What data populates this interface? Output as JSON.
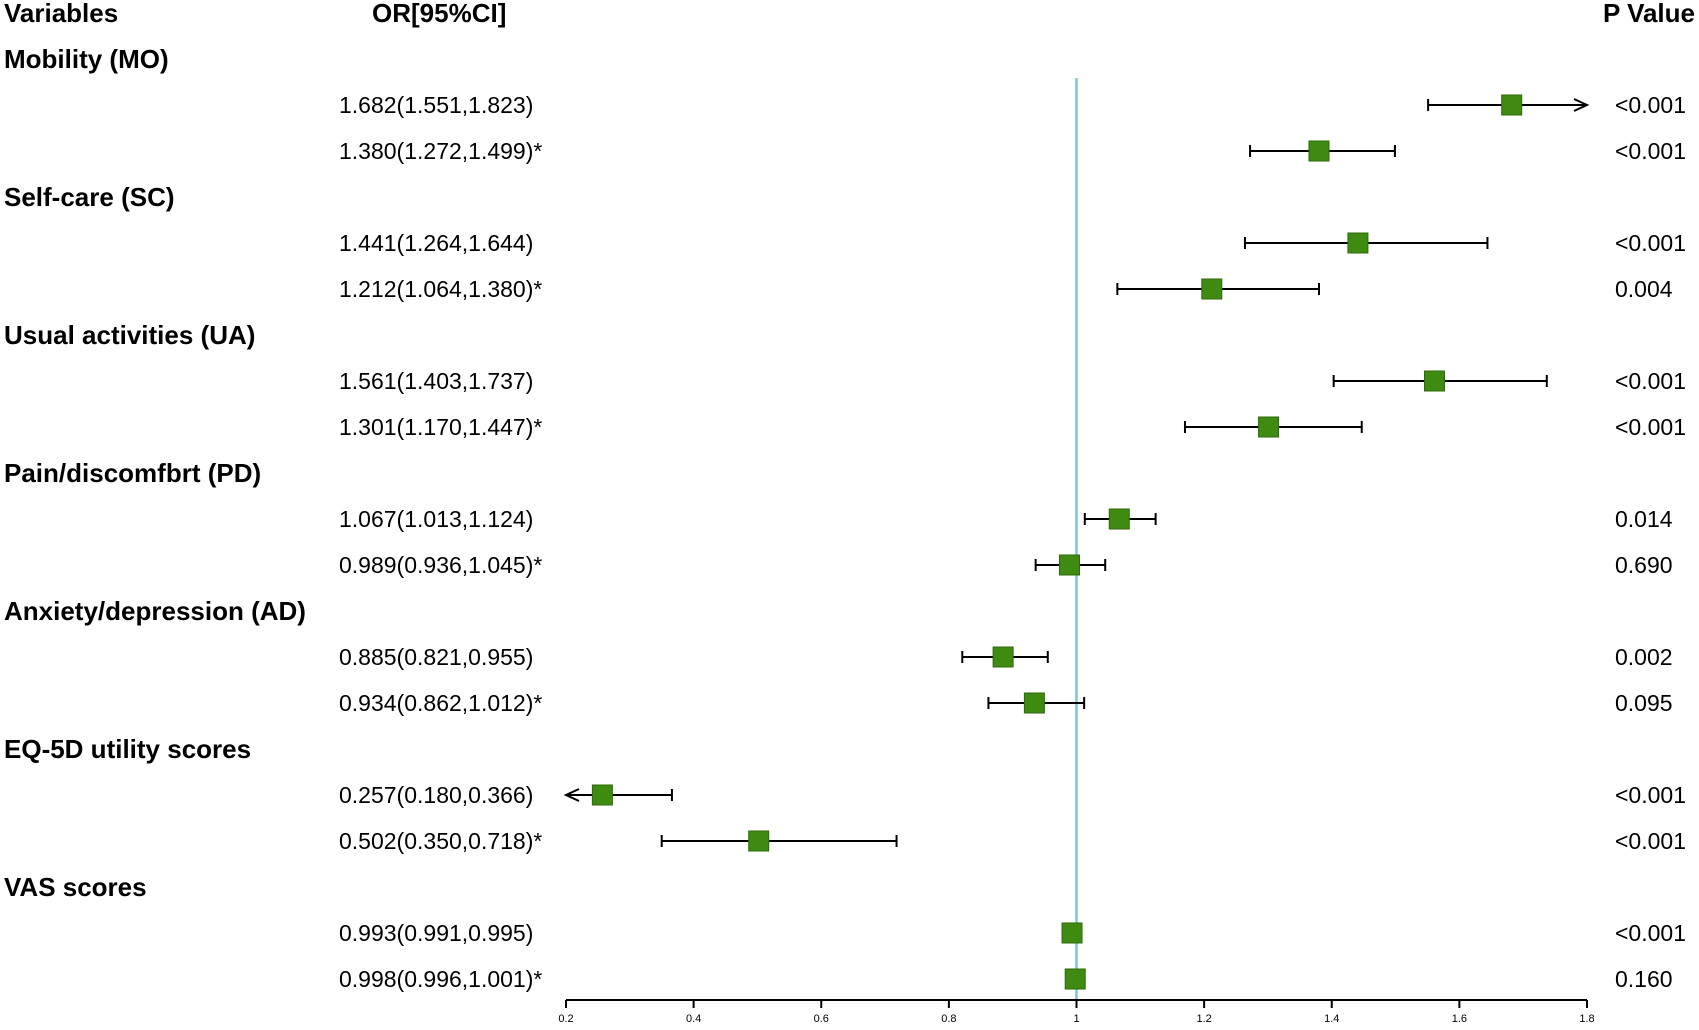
{
  "headers": {
    "variables": "Variables",
    "or": "OR[95%CI]",
    "p": "P Value"
  },
  "colors": {
    "marker": "#3f8a10",
    "marker_edge": "#2c6a0a",
    "refline": "#7cc6d0",
    "ci": "#000000"
  },
  "chart_data": {
    "type": "forest",
    "xlim": [
      0.2,
      1.8
    ],
    "ticks": [
      "0.2",
      "0.4",
      "0.6",
      "0.8",
      "1",
      "1.2",
      "1.4",
      "1.6",
      "1.8"
    ],
    "reference": 1,
    "groups": [
      {
        "label": "Mobility (MO)",
        "rows": [
          {
            "text": "1.682(1.551,1.823)",
            "or": 1.682,
            "lo": 1.551,
            "hi": 1.823,
            "p": "<0.001"
          },
          {
            "text": "1.380(1.272,1.499)*",
            "or": 1.38,
            "lo": 1.272,
            "hi": 1.499,
            "p": "<0.001"
          }
        ]
      },
      {
        "label": "Self-care (SC)",
        "rows": [
          {
            "text": "1.441(1.264,1.644)",
            "or": 1.441,
            "lo": 1.264,
            "hi": 1.644,
            "p": "<0.001"
          },
          {
            "text": "1.212(1.064,1.380)*",
            "or": 1.212,
            "lo": 1.064,
            "hi": 1.38,
            "p": "0.004"
          }
        ]
      },
      {
        "label": "Usual activities (UA)",
        "rows": [
          {
            "text": "1.561(1.403,1.737)",
            "or": 1.561,
            "lo": 1.403,
            "hi": 1.737,
            "p": "<0.001"
          },
          {
            "text": "1.301(1.170,1.447)*",
            "or": 1.301,
            "lo": 1.17,
            "hi": 1.447,
            "p": "<0.001"
          }
        ]
      },
      {
        "label": "Pain/discomfbrt (PD)",
        "rows": [
          {
            "text": "1.067(1.013,1.124)",
            "or": 1.067,
            "lo": 1.013,
            "hi": 1.124,
            "p": "0.014"
          },
          {
            "text": "0.989(0.936,1.045)*",
            "or": 0.989,
            "lo": 0.936,
            "hi": 1.045,
            "p": "0.690"
          }
        ]
      },
      {
        "label": "Anxiety/depression (AD)",
        "rows": [
          {
            "text": "0.885(0.821,0.955)",
            "or": 0.885,
            "lo": 0.821,
            "hi": 0.955,
            "p": "0.002"
          },
          {
            "text": "0.934(0.862,1.012)*",
            "or": 0.934,
            "lo": 0.862,
            "hi": 1.012,
            "p": "0.095"
          }
        ]
      },
      {
        "label": "EQ-5D utility scores",
        "rows": [
          {
            "text": "0.257(0.180,0.366)",
            "or": 0.257,
            "lo": 0.18,
            "hi": 0.366,
            "p": "<0.001"
          },
          {
            "text": "0.502(0.350,0.718)*",
            "or": 0.502,
            "lo": 0.35,
            "hi": 0.718,
            "p": "<0.001"
          }
        ]
      },
      {
        "label": "VAS scores",
        "rows": [
          {
            "text": "0.993(0.991,0.995)",
            "or": 0.993,
            "lo": 0.991,
            "hi": 0.995,
            "p": "<0.001"
          },
          {
            "text": "0.998(0.996,1.001)*",
            "or": 0.998,
            "lo": 0.996,
            "hi": 1.001,
            "p": "0.160"
          }
        ]
      }
    ]
  }
}
